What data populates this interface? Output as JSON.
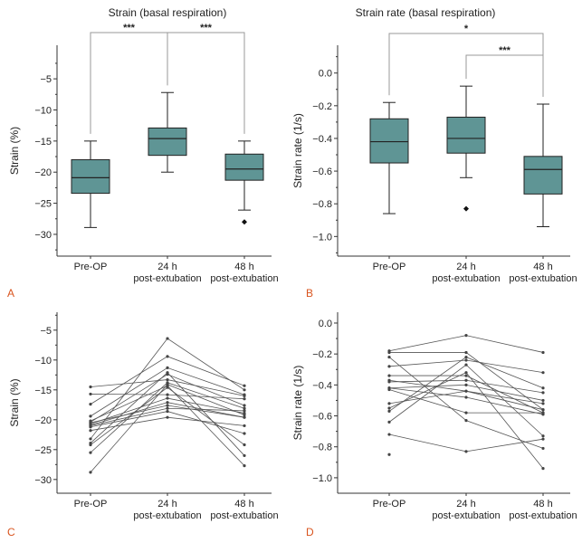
{
  "chart_data": [
    {
      "panel": "A",
      "type": "box",
      "title": "Strain (basal respiration)",
      "ylabel": "Strain (%)",
      "xlabel": "",
      "categories": [
        [
          "Pre-OP"
        ],
        [
          "24 h",
          "post-extubation"
        ],
        [
          "48 h",
          "post-extubation"
        ]
      ],
      "yticks": [
        -5,
        -10,
        -15,
        -20,
        -25,
        -30
      ],
      "ytick_labels": [
        "−5",
        "−10",
        "−15",
        "−20",
        "−25",
        "−30"
      ],
      "ylim": [
        -33.5,
        0.4
      ],
      "boxes": [
        {
          "whisker_high": -15.0,
          "q3": -18.0,
          "median": -20.9,
          "q1": -23.4,
          "whisker_low": -28.9,
          "outliers": []
        },
        {
          "whisker_high": -7.2,
          "q3": -12.9,
          "median": -14.6,
          "q1": -17.3,
          "whisker_low": -20.0,
          "outliers": []
        },
        {
          "whisker_high": -15.0,
          "q3": -17.1,
          "median": -19.5,
          "q1": -21.3,
          "whisker_low": -26.1,
          "outliers": [
            -28.0
          ]
        }
      ],
      "significance": [
        {
          "from": 0,
          "to": 1,
          "label": "***"
        },
        {
          "from": 1,
          "to": 2,
          "label": "***"
        }
      ],
      "box_color": "#5f9595"
    },
    {
      "panel": "B",
      "type": "box",
      "title": "Strain rate (basal respiration)",
      "ylabel": "Strain rate (1/s)",
      "xlabel": "",
      "categories": [
        [
          "Pre-OP"
        ],
        [
          "24 h",
          "post-extubation"
        ],
        [
          "48 h",
          "post-extubation"
        ]
      ],
      "yticks": [
        0.0,
        -0.2,
        -0.4,
        -0.6,
        -0.8,
        -1.0
      ],
      "ytick_labels": [
        "0.0",
        "−0.2",
        "−0.4",
        "−0.6",
        "−0.8",
        "−1.0"
      ],
      "ylim": [
        -1.12,
        0.17
      ],
      "boxes": [
        {
          "whisker_high": -0.18,
          "q3": -0.28,
          "median": -0.42,
          "q1": -0.55,
          "whisker_low": -0.86,
          "outliers": []
        },
        {
          "whisker_high": -0.08,
          "q3": -0.27,
          "median": -0.4,
          "q1": -0.49,
          "whisker_low": -0.64,
          "outliers": [
            -0.83
          ]
        },
        {
          "whisker_high": -0.19,
          "q3": -0.51,
          "median": -0.59,
          "q1": -0.74,
          "whisker_low": -0.94,
          "outliers": []
        }
      ],
      "significance": [
        {
          "from": 0,
          "to": 2,
          "label": "*"
        },
        {
          "from": 1,
          "to": 2,
          "label": "***"
        }
      ],
      "box_color": "#5f9595"
    },
    {
      "panel": "C",
      "type": "line",
      "title": "",
      "ylabel": "Strain (%)",
      "xlabel": "",
      "categories": [
        [
          "Pre-OP"
        ],
        [
          "24 h",
          "post-extubation"
        ],
        [
          "48 h",
          "post-extubation"
        ]
      ],
      "yticks": [
        -5,
        -10,
        -15,
        -20,
        -25,
        -30
      ],
      "ytick_labels": [
        "−5",
        "−10",
        "−15",
        "−20",
        "−25",
        "−30"
      ],
      "ylim": [
        -32.3,
        -2.0
      ],
      "series": [
        [
          -28.8,
          -14.1,
          -19.2
        ],
        [
          -14.5,
          -13.3,
          -16.0
        ],
        [
          -15.7,
          -15.8,
          -16.5
        ],
        [
          -17.4,
          -9.4,
          -14.3
        ],
        [
          -19.4,
          -11.3,
          -15.8
        ],
        [
          -20.2,
          -14.3,
          -27.7
        ],
        [
          -20.4,
          -12.4,
          -17.6
        ],
        [
          -20.7,
          -16.4,
          -18.9
        ],
        [
          -20.9,
          -17.1,
          -19.6
        ],
        [
          -21.2,
          -18.6,
          -22.3
        ],
        [
          -21.8,
          -19.6,
          -21.0
        ],
        [
          -23.2,
          -6.4,
          -15.0
        ],
        [
          -23.9,
          -12.1,
          -26.0
        ],
        [
          -24.2,
          -14.6,
          -24.2
        ],
        [
          -25.5,
          -13.8,
          -18.1
        ],
        [
          -20.5,
          -17.6,
          -19.6
        ],
        [
          -21.0,
          -18.1,
          -18.5
        ]
      ],
      "line_color": "#555555"
    },
    {
      "panel": "D",
      "type": "line",
      "title": "",
      "ylabel": "Strain rate (1/s)",
      "xlabel": "",
      "categories": [
        [
          "Pre-OP"
        ],
        [
          "24 h",
          "post-extubation"
        ],
        [
          "48 h",
          "post-extubation"
        ]
      ],
      "yticks": [
        0.0,
        -0.2,
        -0.4,
        -0.6,
        -0.8,
        -1.0
      ],
      "ytick_labels": [
        "0.0",
        "−0.2",
        "−0.4",
        "−0.6",
        "−0.8",
        "−1.0"
      ],
      "ylim": [
        -1.1,
        0.07
      ],
      "series": [
        [
          -0.18,
          -0.08,
          -0.19
        ],
        [
          -0.19,
          -0.19,
          -0.56
        ],
        [
          -0.22,
          -0.63,
          -0.81
        ],
        [
          -0.28,
          -0.24,
          -0.32
        ],
        [
          -0.34,
          -0.34,
          -0.58
        ],
        [
          -0.37,
          -0.44,
          -0.52
        ],
        [
          -0.38,
          -0.37,
          -0.45
        ],
        [
          -0.42,
          -0.4,
          -0.5
        ],
        [
          -0.42,
          -0.48,
          -0.59
        ],
        [
          -0.43,
          -0.58,
          -0.58
        ],
        [
          -0.52,
          -0.44,
          -0.56
        ],
        [
          -0.55,
          -0.32,
          -0.94
        ],
        [
          -0.57,
          -0.22,
          -0.42
        ],
        [
          -0.64,
          -0.27,
          -0.73
        ],
        [
          -0.72,
          -0.83,
          -0.75
        ],
        [
          -0.85,
          null,
          null
        ]
      ],
      "line_color": "#555555"
    }
  ]
}
